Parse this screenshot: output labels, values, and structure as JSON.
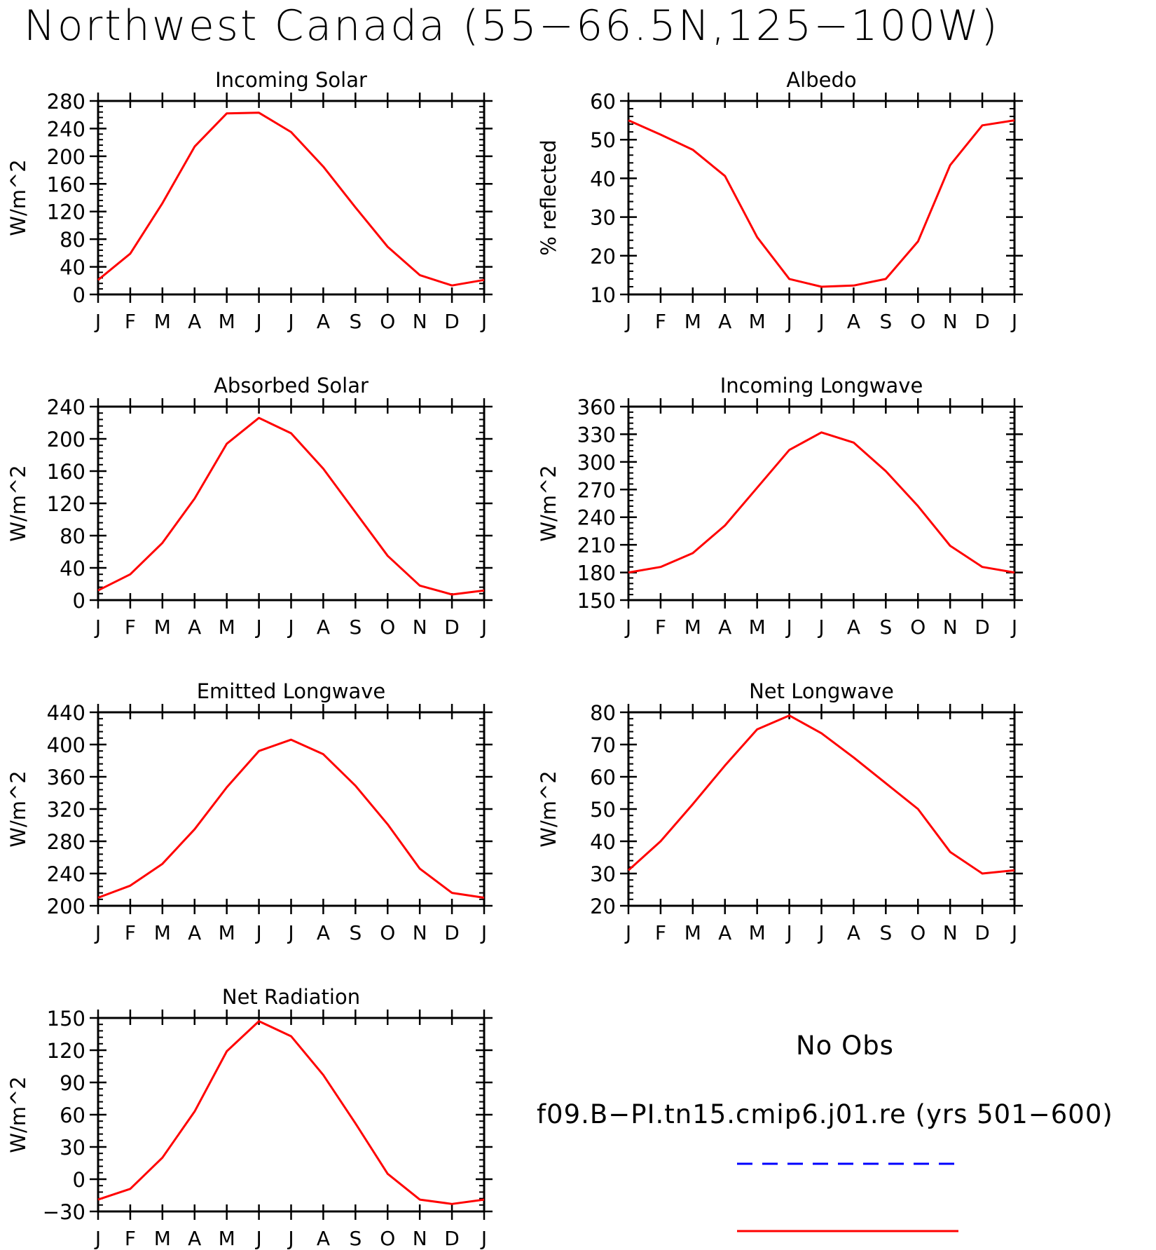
{
  "page": {
    "title": "Northwest Canada (55−66.5N,125−100W)"
  },
  "chart_data": [
    {
      "type": "line",
      "title": "Incoming Solar",
      "ylabel": "W/m^2",
      "xlabel": "",
      "categories": [
        "J",
        "F",
        "M",
        "A",
        "M",
        "J",
        "J",
        "A",
        "S",
        "O",
        "N",
        "D",
        "J"
      ],
      "ylim": [
        0,
        280
      ],
      "yticks": [
        0,
        40,
        80,
        120,
        160,
        200,
        240,
        280
      ],
      "ytick_labels": [
        "0",
        "40",
        "80",
        "120",
        "160",
        "200",
        "240",
        "280"
      ],
      "series": [
        {
          "values": [
            21,
            59,
            132,
            214,
            262,
            263,
            235,
            185,
            126,
            69,
            28,
            13,
            21
          ]
        }
      ]
    },
    {
      "type": "line",
      "title": "Albedo",
      "ylabel": "% reflected",
      "xlabel": "",
      "categories": [
        "J",
        "F",
        "M",
        "A",
        "M",
        "J",
        "J",
        "A",
        "S",
        "O",
        "N",
        "D",
        "J"
      ],
      "ylim": [
        10,
        60
      ],
      "yticks": [
        10,
        20,
        30,
        40,
        50,
        60
      ],
      "ytick_labels": [
        "10",
        "20",
        "30",
        "40",
        "50",
        "60"
      ],
      "series": [
        {
          "values": [
            55,
            51.3,
            47.4,
            40.6,
            24.8,
            14,
            12,
            12.3,
            14,
            23.7,
            43.4,
            53.7,
            55
          ]
        }
      ]
    },
    {
      "type": "line",
      "title": "Absorbed Solar",
      "ylabel": "W/m^2",
      "xlabel": "",
      "categories": [
        "J",
        "F",
        "M",
        "A",
        "M",
        "J",
        "J",
        "A",
        "S",
        "O",
        "N",
        "D",
        "J"
      ],
      "ylim": [
        0,
        240
      ],
      "yticks": [
        0,
        40,
        80,
        120,
        160,
        200,
        240
      ],
      "ytick_labels": [
        "0",
        "40",
        "80",
        "120",
        "160",
        "200",
        "240"
      ],
      "series": [
        {
          "values": [
            12,
            32,
            71,
            126,
            194,
            226,
            207,
            163,
            109,
            55,
            18,
            7,
            12
          ]
        }
      ]
    },
    {
      "type": "line",
      "title": "Incoming Longwave",
      "ylabel": "W/m^2",
      "xlabel": "",
      "categories": [
        "J",
        "F",
        "M",
        "A",
        "M",
        "J",
        "J",
        "A",
        "S",
        "O",
        "N",
        "D",
        "J"
      ],
      "ylim": [
        150,
        360
      ],
      "yticks": [
        150,
        180,
        210,
        240,
        270,
        300,
        330,
        360
      ],
      "ytick_labels": [
        "150",
        "180",
        "210",
        "240",
        "270",
        "300",
        "330",
        "360"
      ],
      "series": [
        {
          "values": [
            180,
            186,
            201,
            231,
            272,
            313,
            332,
            321,
            290,
            252,
            209,
            186,
            180
          ]
        }
      ]
    },
    {
      "type": "line",
      "title": "Emitted Longwave",
      "ylabel": "W/m^2",
      "xlabel": "",
      "categories": [
        "J",
        "F",
        "M",
        "A",
        "M",
        "J",
        "J",
        "A",
        "S",
        "O",
        "N",
        "D",
        "J"
      ],
      "ylim": [
        200,
        440
      ],
      "yticks": [
        200,
        240,
        280,
        320,
        360,
        400,
        440
      ],
      "ytick_labels": [
        "200",
        "240",
        "280",
        "320",
        "360",
        "400",
        "440"
      ],
      "series": [
        {
          "values": [
            210,
            225,
            252,
            295,
            347,
            392,
            406,
            388,
            349,
            301,
            246,
            216,
            210
          ]
        }
      ]
    },
    {
      "type": "line",
      "title": "Net Longwave",
      "ylabel": "W/m^2",
      "xlabel": "",
      "categories": [
        "J",
        "F",
        "M",
        "A",
        "M",
        "J",
        "J",
        "A",
        "S",
        "O",
        "N",
        "D",
        "J"
      ],
      "ylim": [
        20,
        80
      ],
      "yticks": [
        20,
        30,
        40,
        50,
        60,
        70,
        80
      ],
      "ytick_labels": [
        "20",
        "30",
        "40",
        "50",
        "60",
        "70",
        "80"
      ],
      "series": [
        {
          "values": [
            31,
            40,
            51.5,
            63.5,
            74.7,
            79,
            73.5,
            66,
            58,
            50,
            36.7,
            30,
            31
          ]
        }
      ]
    },
    {
      "type": "line",
      "title": "Net Radiation",
      "ylabel": "W/m^2",
      "xlabel": "",
      "categories": [
        "J",
        "F",
        "M",
        "A",
        "M",
        "J",
        "J",
        "A",
        "S",
        "O",
        "N",
        "D",
        "J"
      ],
      "ylim": [
        -30,
        150
      ],
      "yticks": [
        -30,
        0,
        30,
        60,
        90,
        120,
        150
      ],
      "ytick_labels": [
        "−30",
        "0",
        "30",
        "60",
        "90",
        "120",
        "150"
      ],
      "series": [
        {
          "values": [
            -19,
            -9,
            20,
            63,
            119,
            147,
            133,
            97,
            52,
            5,
            -19,
            -23,
            -19
          ]
        }
      ]
    }
  ],
  "legend": {
    "items": [
      {
        "label": "No Obs",
        "color": "#0000ff",
        "style": "dashed"
      },
      {
        "label": "f09.B−PI.tn15.cmip6.j01.re (yrs 501−600)",
        "color": "#ff0000",
        "style": "solid"
      }
    ]
  },
  "colors": {
    "line": "#ff0000",
    "obs": "#0000ff",
    "axes": "#000000"
  }
}
